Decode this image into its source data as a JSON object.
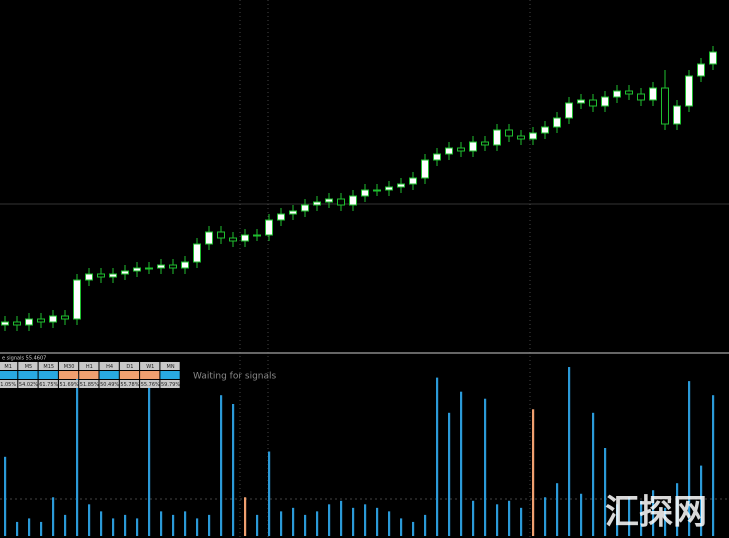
{
  "indicator_label": "e signals 55.4607",
  "status": "Waiting for signals",
  "watermark": "汇探网",
  "signals": [
    {
      "tf": "M1",
      "color": "#29a9e0",
      "pct": "1.05%"
    },
    {
      "tf": "M5",
      "color": "#29a9e0",
      "pct": "54.02%"
    },
    {
      "tf": "M15",
      "color": "#29a9e0",
      "pct": "61.75%"
    },
    {
      "tf": "M30",
      "color": "#f0a070",
      "pct": "51.69%"
    },
    {
      "tf": "H1",
      "color": "#f0a070",
      "pct": "51.85%"
    },
    {
      "tf": "H4",
      "color": "#29a9e0",
      "pct": "50.49%"
    },
    {
      "tf": "D1",
      "color": "#f0a070",
      "pct": "55.78%"
    },
    {
      "tf": "W1",
      "color": "#f0a070",
      "pct": "55.76%"
    },
    {
      "tf": "MN",
      "color": "#29a9e0",
      "pct": "59.79%"
    }
  ],
  "candles": {
    "open": [
      5,
      6,
      5,
      7,
      6,
      8,
      7,
      20,
      22,
      21,
      22,
      23,
      24,
      24,
      25,
      24,
      26,
      32,
      36,
      34,
      33,
      35,
      35,
      40,
      42,
      43,
      45,
      46,
      47,
      45,
      48,
      50,
      50,
      51,
      52,
      54,
      60,
      62,
      64,
      63,
      66,
      65,
      70,
      68,
      67,
      69,
      71,
      74,
      79,
      80,
      78,
      81,
      83,
      82,
      80,
      84,
      72,
      78,
      88,
      92
    ],
    "high": [
      8,
      8,
      9,
      9,
      10,
      10,
      22,
      24,
      24,
      24,
      25,
      26,
      26,
      27,
      27,
      28,
      34,
      38,
      38,
      36,
      37,
      37,
      42,
      44,
      45,
      47,
      48,
      49,
      49,
      50,
      52,
      52,
      53,
      54,
      56,
      62,
      64,
      66,
      66,
      68,
      68,
      72,
      72,
      70,
      71,
      73,
      76,
      81,
      82,
      82,
      83,
      85,
      85,
      84,
      86,
      90,
      80,
      90,
      94,
      98
    ],
    "low": [
      3,
      3,
      3,
      4,
      4,
      5,
      5,
      18,
      19,
      19,
      20,
      21,
      22,
      22,
      22,
      22,
      24,
      30,
      32,
      31,
      31,
      33,
      33,
      38,
      40,
      41,
      43,
      44,
      43,
      43,
      46,
      48,
      48,
      49,
      50,
      52,
      58,
      60,
      61,
      61,
      63,
      63,
      66,
      65,
      65,
      67,
      69,
      72,
      77,
      76,
      76,
      79,
      80,
      78,
      78,
      70,
      70,
      76,
      86,
      90
    ],
    "close": [
      6,
      5,
      7,
      6,
      8,
      7,
      20,
      22,
      21,
      22,
      23,
      24,
      24,
      25,
      24,
      26,
      32,
      36,
      34,
      33,
      35,
      35,
      40,
      42,
      43,
      45,
      46,
      47,
      45,
      48,
      50,
      50,
      51,
      52,
      54,
      60,
      62,
      64,
      63,
      66,
      65,
      70,
      68,
      67,
      69,
      71,
      74,
      79,
      80,
      78,
      81,
      83,
      82,
      80,
      84,
      72,
      78,
      88,
      92,
      96
    ],
    "color": "#1fbf2f"
  },
  "histogram": {
    "series": [
      {
        "color": "#2b9ad8",
        "values": [
          45,
          8,
          10,
          8,
          22,
          12,
          92,
          18,
          14,
          10,
          12,
          10,
          88,
          14,
          12,
          14,
          10,
          12,
          80,
          75,
          null,
          12,
          48,
          14,
          16,
          12,
          14,
          18,
          20,
          16,
          18,
          16,
          14,
          10,
          8,
          12,
          90,
          70,
          82,
          20,
          78,
          18,
          20,
          16,
          null,
          22,
          30,
          96,
          24,
          70,
          50,
          18,
          22,
          20,
          26,
          16,
          30,
          88,
          40,
          80
        ]
      },
      {
        "color": "#f0a070",
        "values": [
          null,
          null,
          null,
          null,
          null,
          null,
          null,
          null,
          null,
          null,
          null,
          null,
          null,
          null,
          null,
          null,
          null,
          null,
          null,
          null,
          22,
          null,
          null,
          null,
          null,
          null,
          null,
          null,
          null,
          null,
          null,
          null,
          null,
          null,
          null,
          null,
          null,
          null,
          null,
          null,
          null,
          null,
          null,
          null,
          72,
          null,
          null,
          null,
          null,
          null,
          null,
          null,
          null,
          null,
          null,
          null,
          null,
          null,
          null,
          null
        ]
      }
    ]
  }
}
